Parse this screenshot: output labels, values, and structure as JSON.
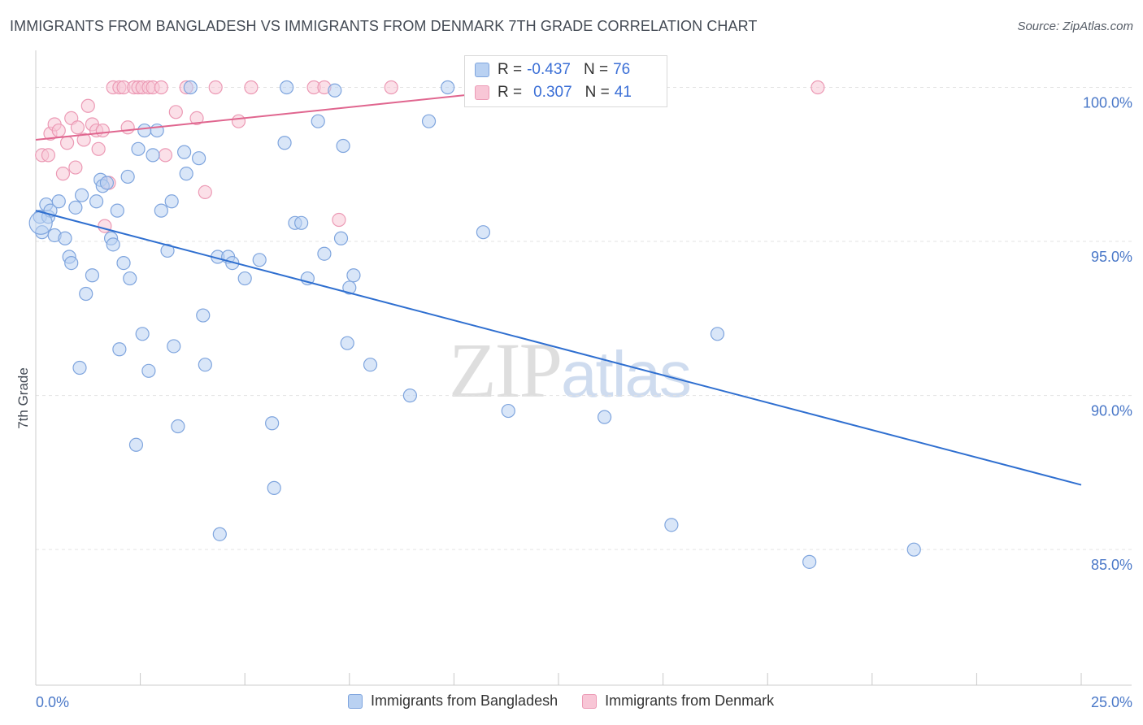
{
  "header": {
    "title": "IMMIGRANTS FROM BANGLADESH VS IMMIGRANTS FROM DENMARK 7TH GRADE CORRELATION CHART",
    "source": "Source: ZipAtlas.com"
  },
  "watermark": {
    "zip": "ZIP",
    "atlas": "atlas"
  },
  "legend": {
    "series1": {
      "r_label": "R =",
      "r_value": "-0.437",
      "n_label": "N =",
      "n_value": "76"
    },
    "series2": {
      "r_label": "R =",
      "r_value": "0.307",
      "n_label": "N =",
      "n_value": "41"
    }
  },
  "colors": {
    "blue_fill": "#b9d1f2",
    "blue_stroke": "#7fa5de",
    "blue_line": "#2f6fd0",
    "pink_fill": "#f8c6d6",
    "pink_stroke": "#ec9ab5",
    "pink_line": "#e0668f",
    "grid": "#e3e3e3",
    "axis_text": "#4a78c8"
  },
  "chart_data": {
    "type": "scatter",
    "title": "IMMIGRANTS FROM BANGLADESH VS IMMIGRANTS FROM DENMARK 7TH GRADE CORRELATION CHART",
    "xlabel": "",
    "ylabel": "7th Grade",
    "xlim": [
      0,
      25
    ],
    "ylim": [
      80.6,
      101.2
    ],
    "x_tick_labels": [
      {
        "value": 0,
        "label": "0.0%"
      },
      {
        "value": 25,
        "label": "25.0%"
      }
    ],
    "y_ticks": [
      {
        "value": 100,
        "label": "100.0%"
      },
      {
        "value": 95,
        "label": "95.0%"
      },
      {
        "value": 90,
        "label": "90.0%"
      },
      {
        "value": 85,
        "label": "85.0%"
      }
    ],
    "series": [
      {
        "name": "Immigrants from Bangladesh",
        "color": "blue",
        "trend": {
          "x": [
            0,
            25
          ],
          "y": [
            96.0,
            87.1
          ]
        },
        "points": [
          [
            0.1,
            95.8
          ],
          [
            0.15,
            95.3
          ],
          [
            0.25,
            96.2
          ],
          [
            0.3,
            95.8
          ],
          [
            0.35,
            96.0
          ],
          [
            0.45,
            95.2
          ],
          [
            0.55,
            96.3
          ],
          [
            0.7,
            95.1
          ],
          [
            0.8,
            94.5
          ],
          [
            0.85,
            94.3
          ],
          [
            0.95,
            96.1
          ],
          [
            1.1,
            96.5
          ],
          [
            1.2,
            93.3
          ],
          [
            1.35,
            93.9
          ],
          [
            1.45,
            96.3
          ],
          [
            1.55,
            97.0
          ],
          [
            1.6,
            96.8
          ],
          [
            1.7,
            96.9
          ],
          [
            1.8,
            95.1
          ],
          [
            1.85,
            94.9
          ],
          [
            1.95,
            96.0
          ],
          [
            2.1,
            94.3
          ],
          [
            2.2,
            97.1
          ],
          [
            2.25,
            93.8
          ],
          [
            2.45,
            98.0
          ],
          [
            2.6,
            98.6
          ],
          [
            2.8,
            97.8
          ],
          [
            2.9,
            98.6
          ],
          [
            3.0,
            96.0
          ],
          [
            3.15,
            94.7
          ],
          [
            3.25,
            96.3
          ],
          [
            3.55,
            97.9
          ],
          [
            3.6,
            97.2
          ],
          [
            3.7,
            100.0
          ],
          [
            3.9,
            97.7
          ],
          [
            4.0,
            92.6
          ],
          [
            4.35,
            94.5
          ],
          [
            4.6,
            94.5
          ],
          [
            4.7,
            94.3
          ],
          [
            5.0,
            93.8
          ],
          [
            5.35,
            94.4
          ],
          [
            5.95,
            98.2
          ],
          [
            6.0,
            100.0
          ],
          [
            6.2,
            95.6
          ],
          [
            6.35,
            95.6
          ],
          [
            6.5,
            93.8
          ],
          [
            6.75,
            98.9
          ],
          [
            6.9,
            94.6
          ],
          [
            7.15,
            99.9
          ],
          [
            7.3,
            95.1
          ],
          [
            7.35,
            98.1
          ],
          [
            7.45,
            91.7
          ],
          [
            7.5,
            93.5
          ],
          [
            7.6,
            93.9
          ],
          [
            8.0,
            91.0
          ],
          [
            8.95,
            90.0
          ],
          [
            9.4,
            98.9
          ],
          [
            9.85,
            100.0
          ],
          [
            10.7,
            95.3
          ],
          [
            11.3,
            89.5
          ],
          [
            13.6,
            89.3
          ],
          [
            15.2,
            85.8
          ],
          [
            16.3,
            92.0
          ],
          [
            18.5,
            84.6
          ],
          [
            21.0,
            85.0
          ],
          [
            1.05,
            90.9
          ],
          [
            2.0,
            91.5
          ],
          [
            2.55,
            92.0
          ],
          [
            2.7,
            90.8
          ],
          [
            3.3,
            91.6
          ],
          [
            3.4,
            89.0
          ],
          [
            4.05,
            91.0
          ],
          [
            2.4,
            88.4
          ],
          [
            5.65,
            89.1
          ],
          [
            4.4,
            85.5
          ],
          [
            5.7,
            87.0
          ]
        ]
      },
      {
        "name": "Immigrants from Denmark",
        "color": "pink",
        "trend": {
          "x": [
            0,
            11
          ],
          "y": [
            98.3,
            99.85
          ]
        },
        "points": [
          [
            0.15,
            97.8
          ],
          [
            0.3,
            97.8
          ],
          [
            0.35,
            98.5
          ],
          [
            0.45,
            98.8
          ],
          [
            0.55,
            98.6
          ],
          [
            0.65,
            97.2
          ],
          [
            0.75,
            98.2
          ],
          [
            0.85,
            99.0
          ],
          [
            0.95,
            97.4
          ],
          [
            1.0,
            98.7
          ],
          [
            1.15,
            98.3
          ],
          [
            1.25,
            99.4
          ],
          [
            1.35,
            98.8
          ],
          [
            1.45,
            98.6
          ],
          [
            1.5,
            98.0
          ],
          [
            1.6,
            98.6
          ],
          [
            1.65,
            95.5
          ],
          [
            1.75,
            96.9
          ],
          [
            1.85,
            100.0
          ],
          [
            2.0,
            100.0
          ],
          [
            2.1,
            100.0
          ],
          [
            2.2,
            98.7
          ],
          [
            2.35,
            100.0
          ],
          [
            2.45,
            100.0
          ],
          [
            2.55,
            100.0
          ],
          [
            2.7,
            100.0
          ],
          [
            2.8,
            100.0
          ],
          [
            3.0,
            100.0
          ],
          [
            3.1,
            97.8
          ],
          [
            3.35,
            99.2
          ],
          [
            3.6,
            100.0
          ],
          [
            3.85,
            99.0
          ],
          [
            4.05,
            96.6
          ],
          [
            4.3,
            100.0
          ],
          [
            4.85,
            98.9
          ],
          [
            5.15,
            100.0
          ],
          [
            6.65,
            100.0
          ],
          [
            6.9,
            100.0
          ],
          [
            7.25,
            95.7
          ],
          [
            8.5,
            100.0
          ],
          [
            18.7,
            100.0
          ]
        ]
      }
    ]
  },
  "bottom_legend": {
    "item1": "Immigrants from Bangladesh",
    "item2": "Immigrants from Denmark"
  }
}
